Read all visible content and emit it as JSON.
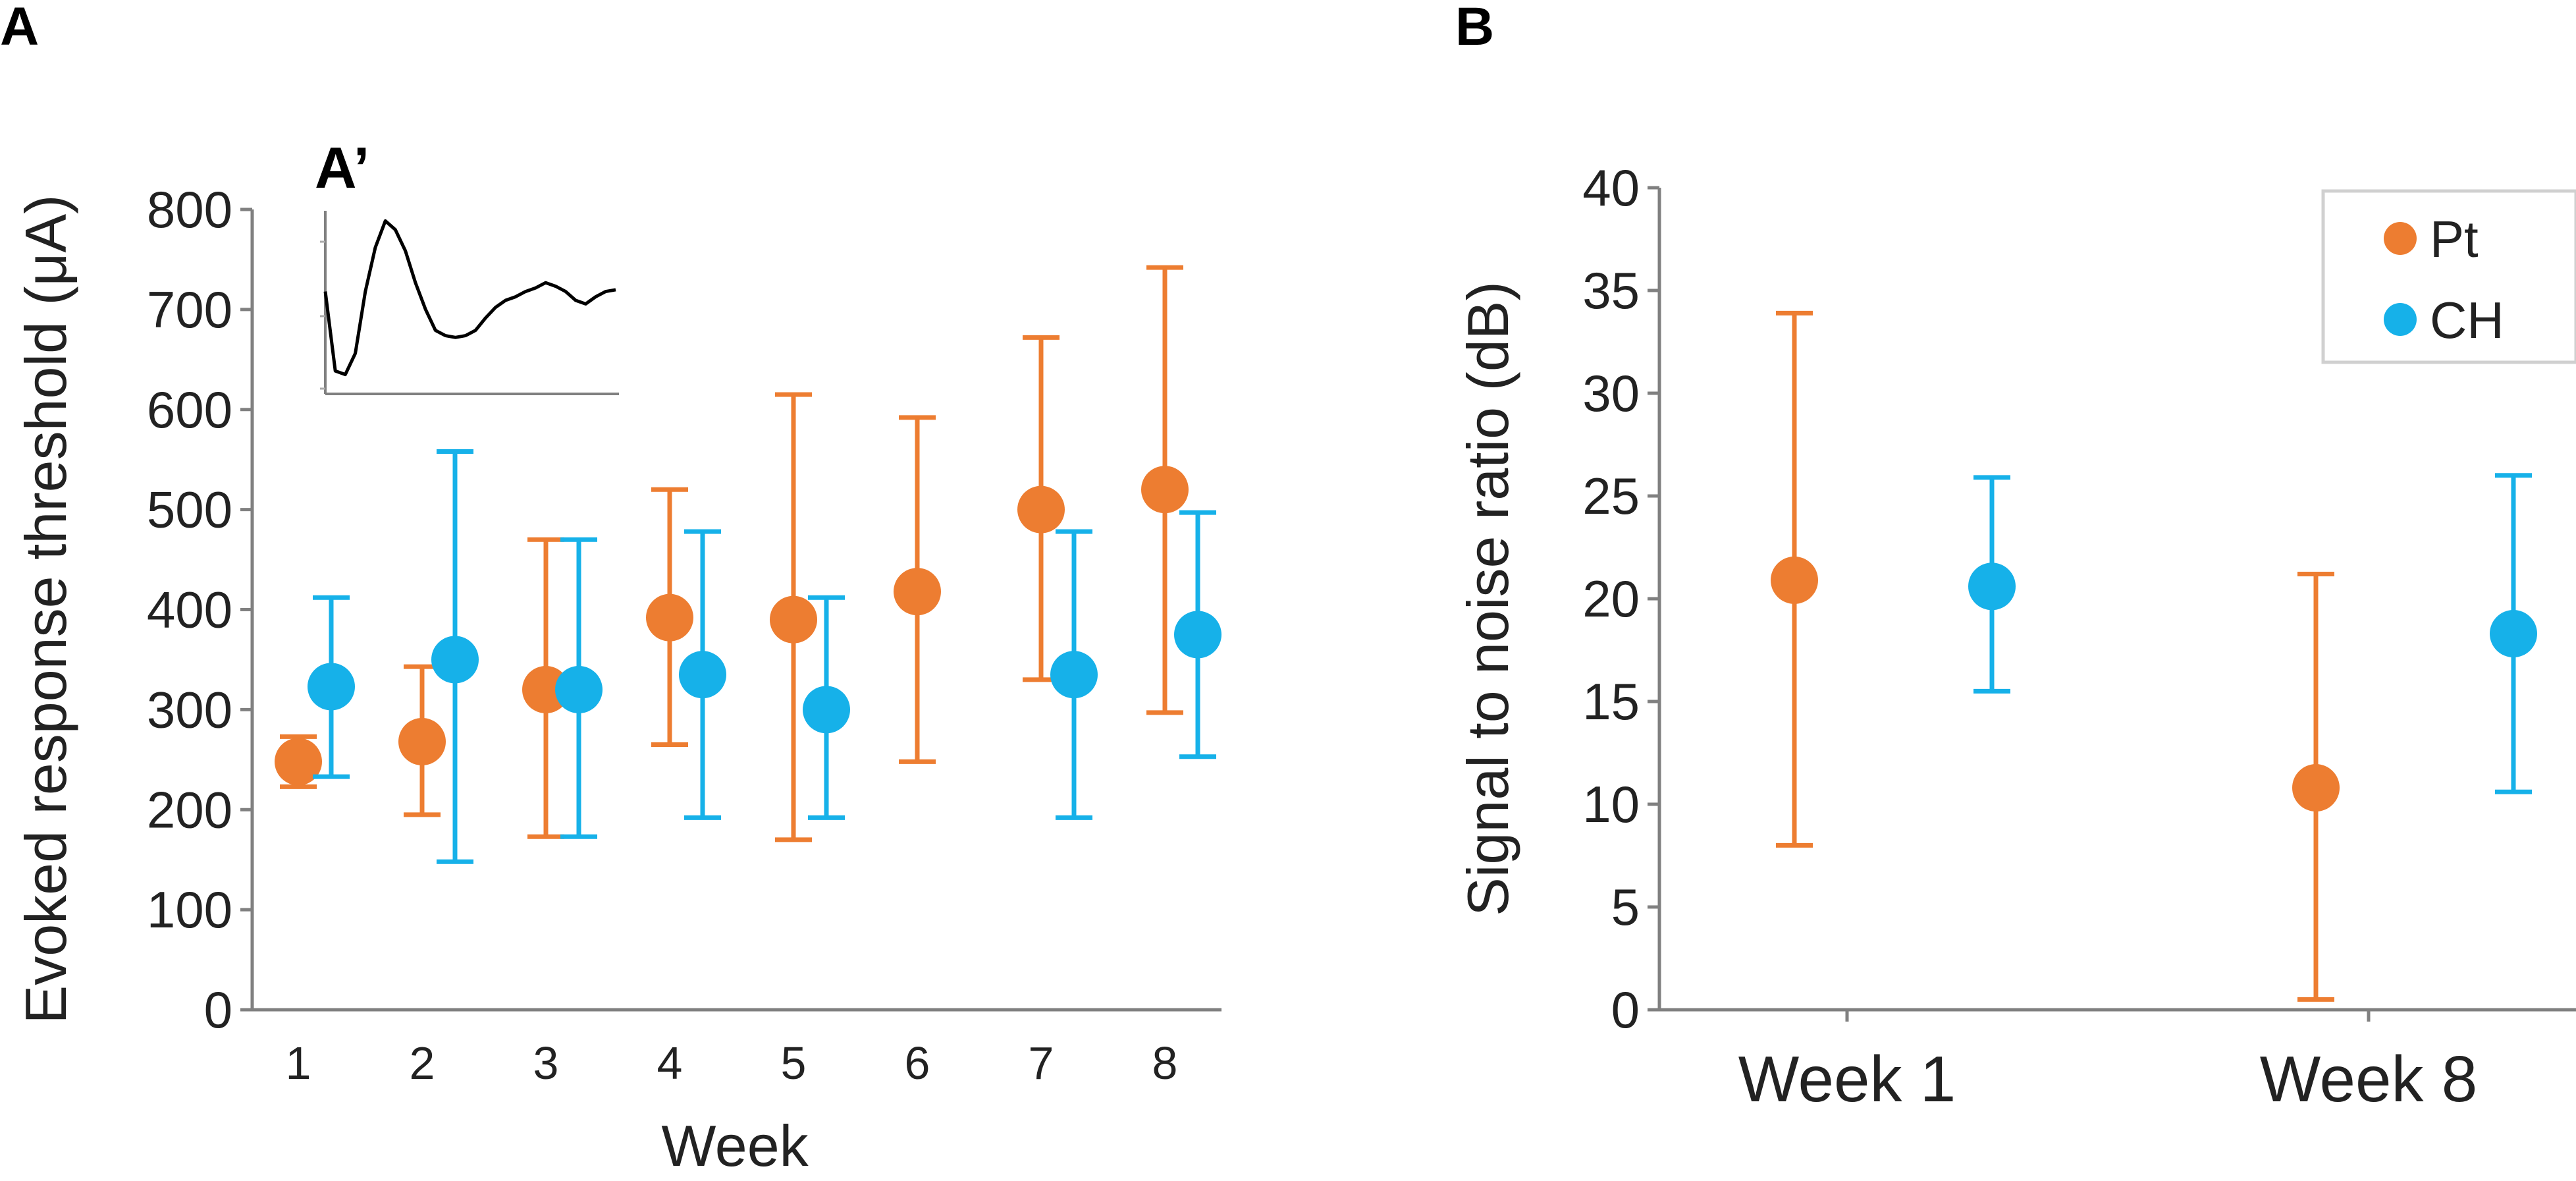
{
  "colors": {
    "Pt": "#ed7d31",
    "CH": "#16b1e9",
    "axis": "#808080",
    "text": "#222222",
    "inset_trace": "#000000"
  },
  "chart_data": [
    {
      "panel_label": "A",
      "type": "scatter",
      "subtype": "errorbar",
      "xlabel": "Week",
      "ylabel": "Evoked response threshold (μA)",
      "categories": [
        "1",
        "2",
        "3",
        "4",
        "5",
        "6",
        "7",
        "8"
      ],
      "ylim": [
        0,
        800
      ],
      "yticks": [
        "0",
        "100",
        "200",
        "300",
        "400",
        "500",
        "600",
        "700",
        "800"
      ],
      "series": [
        {
          "name": "Pt",
          "color": "#ed7d31",
          "values": [
            248,
            268,
            320,
            392,
            390,
            418,
            500,
            520
          ],
          "err_low": [
            223,
            195,
            173,
            265,
            170,
            248,
            330,
            297
          ],
          "err_high": [
            273,
            343,
            470,
            520,
            615,
            592,
            672,
            742
          ]
        },
        {
          "name": "CH",
          "color": "#16b1e9",
          "values": [
            323,
            350,
            320,
            335,
            300,
            null,
            335,
            375
          ],
          "err_low": [
            233,
            148,
            173,
            192,
            192,
            null,
            192,
            253
          ],
          "err_high": [
            412,
            558,
            470,
            478,
            412,
            null,
            478,
            497
          ]
        }
      ],
      "inset": {
        "label": "A’",
        "type": "line",
        "description": "example evoked response trace",
        "y": [
          0.55,
          0.1,
          0.08,
          0.2,
          0.55,
          0.8,
          0.95,
          0.9,
          0.78,
          0.6,
          0.45,
          0.33,
          0.3,
          0.29,
          0.3,
          0.33,
          0.4,
          0.46,
          0.5,
          0.52,
          0.55,
          0.57,
          0.6,
          0.58,
          0.55,
          0.5,
          0.48,
          0.52,
          0.55,
          0.56
        ]
      }
    },
    {
      "panel_label": "B",
      "type": "scatter",
      "subtype": "errorbar",
      "xlabel": "",
      "ylabel": "Signal to noise ratio (dB)",
      "categories": [
        "Week 1",
        "Week 8"
      ],
      "ylim": [
        0,
        40
      ],
      "yticks": [
        "0",
        "5",
        "10",
        "15",
        "20",
        "25",
        "30",
        "35",
        "40"
      ],
      "legend": {
        "placement": "top-right",
        "entries": [
          "Pt",
          "CH"
        ]
      },
      "series": [
        {
          "name": "Pt",
          "color": "#ed7d31",
          "values": [
            20.9,
            10.8
          ],
          "err_low": [
            8.0,
            0.5
          ],
          "err_high": [
            33.9,
            21.2
          ]
        },
        {
          "name": "CH",
          "color": "#16b1e9",
          "values": [
            20.6,
            18.3
          ],
          "err_low": [
            15.5,
            10.6
          ],
          "err_high": [
            25.9,
            26.0
          ]
        }
      ]
    }
  ]
}
